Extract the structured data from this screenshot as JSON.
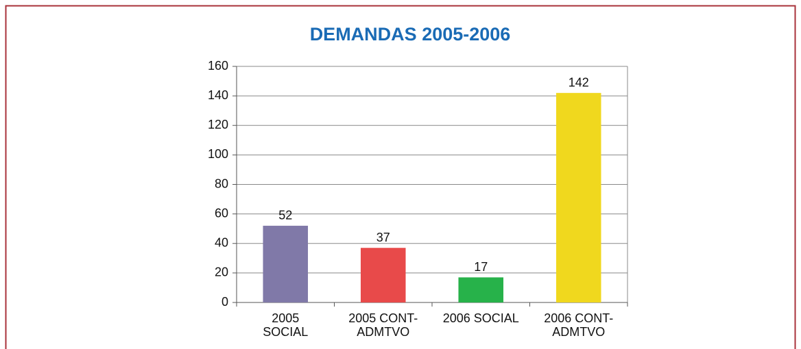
{
  "chart_data": {
    "type": "bar",
    "title": "DEMANDAS 2005-2006",
    "categories": [
      "2005\nSOCIAL",
      "2005 CONT-\nADMTVO",
      "2006 SOCIAL",
      "2006 CONT-\nADMTVO"
    ],
    "values": [
      52,
      37,
      17,
      142
    ],
    "colors": [
      "#8079a8",
      "#e84a4a",
      "#27b24a",
      "#f0d81e"
    ],
    "ylim": [
      0,
      160
    ],
    "yticks": [
      0,
      20,
      40,
      60,
      80,
      100,
      120,
      140,
      160
    ],
    "grid": true
  }
}
